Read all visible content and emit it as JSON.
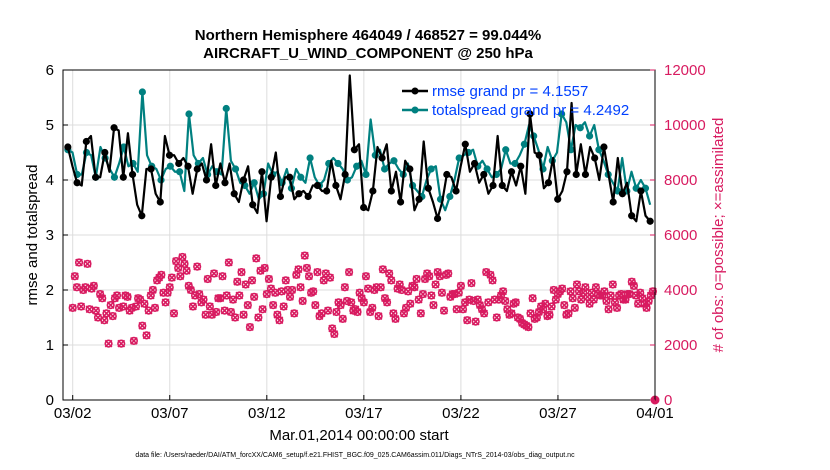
{
  "chart_data": {
    "type": "line",
    "title_line1": "Northern Hemisphere 464049 / 468527 = 99.044%",
    "title_line2": "AIRCRAFT_U_WIND_COMPONENT @ 250 hPa",
    "xlabel": "Mar.01,2014 00:00:00 start",
    "ylabel_left": "rmse and totalspread",
    "ylabel_right": "# of obs: o=possible; ×=assimilated",
    "footnote": "data file: /Users/raeder/DAI/ATM_forcXX/CAM6_setup/f.e21.FHIST_BGC.f09_025.CAM6assim.011/Diags_NTrS_2014-03/obs_diag_output.nc",
    "xlim": [
      1.5,
      32.0
    ],
    "ylim_left": [
      0,
      6
    ],
    "ylim_right": [
      0,
      12000
    ],
    "xticks": [
      2,
      7,
      12,
      17,
      22,
      27,
      32
    ],
    "xtick_labels": [
      "03/02",
      "03/07",
      "03/12",
      "03/17",
      "03/22",
      "03/27",
      "04/01"
    ],
    "yticks_left": [
      "0",
      "1",
      "2",
      "3",
      "4",
      "5",
      "6"
    ],
    "yticks_right": [
      "0",
      "2000",
      "4000",
      "6000",
      "8000",
      "10000",
      "12000"
    ],
    "colors": {
      "rmse": "#000000",
      "spread": "#008080",
      "obs": "#d81b60",
      "legend_text": "#0040ff",
      "grid": "#dddddd"
    },
    "series": [
      {
        "name": "rmse grand pr = 4.1557",
        "axis": "left",
        "values": [
          4.6,
          4.25,
          3.95,
          3.9,
          4.7,
          4.8,
          4.05,
          4.05,
          4.5,
          4.15,
          4.95,
          4.9,
          4.05,
          4.85,
          4.1,
          3.55,
          3.35,
          4.2,
          4.2,
          3.75,
          3.6,
          4.8,
          4.45,
          4.45,
          4.3,
          4.4,
          4.25,
          3.75,
          4.2,
          4.3,
          4.0,
          4.65,
          3.9,
          4.3,
          3.95,
          4.3,
          3.75,
          3.6,
          4.0,
          4.25,
          3.55,
          3.4,
          4.15,
          3.25,
          4.05,
          4.5,
          3.7,
          4.05,
          4.05,
          3.65,
          3.75,
          3.8,
          3.7,
          3.9,
          3.9,
          3.8,
          3.8,
          4.35,
          3.9,
          3.65,
          4.1,
          5.9,
          4.55,
          4.65,
          3.5,
          3.45,
          3.8,
          4.6,
          4.4,
          4.65,
          3.8,
          4.15,
          3.6,
          4.35,
          4.2,
          3.45,
          3.65,
          4.7,
          3.85,
          3.6,
          3.3,
          3.6,
          4.1,
          4.05,
          3.8,
          4.25,
          4.65,
          4.15,
          4.3,
          3.95,
          4.1,
          3.75,
          3.9,
          4.8,
          3.9,
          3.8,
          4.15,
          3.9,
          4.25,
          3.75,
          5.2,
          4.5,
          4.45,
          3.85,
          3.95,
          4.4,
          3.65,
          3.8,
          4.15,
          5.4,
          4.1,
          4.65,
          4.1,
          4.6,
          4.4,
          4.0,
          4.6,
          4.1,
          3.6,
          4.4,
          3.75,
          3.95,
          3.35,
          3.25,
          3.8,
          3.35,
          3.25
        ],
        "marker_every": 2
      },
      {
        "name": "totalspread grand pr = 4.2492",
        "axis": "left",
        "values": [
          4.55,
          4.5,
          4.1,
          4.1,
          4.5,
          4.45,
          4.05,
          4.6,
          4.4,
          4.2,
          4.05,
          4.3,
          4.6,
          4.25,
          4.3,
          4.15,
          5.6,
          4.45,
          4.25,
          4.2,
          4.0,
          4.2,
          4.25,
          4.15,
          4.15,
          3.8,
          5.2,
          4.45,
          4.3,
          4.4,
          4.1,
          4.25,
          4.15,
          4.1,
          5.3,
          4.35,
          4.2,
          3.95,
          3.9,
          3.75,
          3.95,
          3.65,
          3.75,
          4.3,
          4.1,
          4.15,
          3.95,
          4.2,
          3.85,
          4.2,
          4.05,
          3.95,
          4.4,
          4.05,
          3.9,
          4.0,
          4.3,
          4.4,
          4.3,
          4.2,
          4.0,
          4.05,
          4.25,
          4.35,
          4.1,
          5.1,
          4.45,
          4.55,
          4.2,
          4.3,
          4.35,
          4.2,
          4.1,
          4.3,
          3.9,
          3.8,
          3.7,
          4.0,
          4.2,
          4.25,
          3.65,
          3.45,
          3.7,
          4.0,
          4.4,
          4.45,
          4.5,
          4.55,
          4.25,
          4.35,
          4.2,
          4.05,
          4.1,
          4.2,
          4.55,
          4.3,
          4.3,
          4.45,
          4.65,
          5.0,
          4.8,
          4.55,
          4.2,
          4.6,
          4.35,
          4.5,
          5.2,
          5.05,
          4.55,
          5.0,
          4.95,
          5.05,
          4.8,
          5.0,
          4.55,
          4.35,
          4.1,
          3.95,
          3.8,
          4.4,
          3.8,
          4.15,
          3.85,
          4.0,
          3.85,
          3.55
        ],
        "marker_every": 2
      },
      {
        "name": "obs possible",
        "axis": "right",
        "values": [
          3350,
          4500,
          4100,
          5000,
          3400,
          4000,
          4100,
          4950,
          3300,
          4050,
          4150,
          3250,
          3000,
          3850,
          3700,
          2900,
          3150,
          2050,
          3450,
          3050,
          3700,
          3800,
          3350,
          2050,
          3400,
          3800,
          3750,
          3250,
          3350,
          2150,
          3400,
          3700,
          3650,
          2700,
          3500,
          2350,
          3250,
          3800,
          4000,
          3350,
          4350,
          4450,
          4550,
          3900,
          3550,
          3900,
          4100,
          4450,
          3150,
          5050,
          4800,
          4500,
          5200,
          4950,
          4700,
          4150,
          4000,
          3400,
          3800,
          4850,
          3850,
          3550,
          3650,
          3100,
          4400,
          3400,
          3100,
          4600,
          3200,
          3700,
          3700,
          4500,
          3250,
          3800,
          5000,
          3200,
          3650,
          3000,
          4300,
          3800,
          4650,
          3100,
          4200,
          3450,
          2650,
          4350,
          3750,
          5150,
          3000,
          4700,
          3300,
          4800,
          3850,
          4400,
          4050,
          3450,
          3900,
          3100,
          2900,
          3950,
          3400,
          4350,
          4000,
          3750,
          4000,
          3150,
          4550,
          4750,
          4100,
          3600,
          5250,
          4800,
          4500,
          3900,
          3950,
          3450,
          4650,
          3050,
          3150,
          4350,
          4600,
          3250,
          4450,
          2600,
          2400,
          3200,
          3550,
          3450,
          2950,
          4100,
          3600,
          4650,
          3550,
          3250,
          3300,
          3200,
          3900,
          3700,
          3550,
          4500,
          4050,
          3200,
          3350,
          4000,
          4100,
          3050,
          4100,
          4750,
          3700,
          3550,
          4600,
          4350,
          3150,
          2950,
          4050,
          4200,
          4000,
          3150,
          3350,
          3950,
          3500,
          4150,
          4100,
          4400,
          3650,
          3150,
          3850,
          4400,
          4600,
          4500,
          3800,
          3450,
          4200,
          4650,
          4500,
          3900,
          3250,
          4550,
          4600,
          3750,
          3850,
          3850,
          3300,
          3900,
          4150,
          3300,
          3550,
          2900,
          3650,
          4250,
          3600,
          2850,
          3650,
          3450,
          3300,
          3150,
          4650,
          3550,
          4550,
          4350,
          3650,
          3000,
          3650,
          3800,
          3950,
          3600,
          3300,
          3100,
          3150,
          3500,
          3550,
          3000,
          2950,
          2800,
          2750,
          2700,
          2650,
          3150,
          3700,
          2950,
          3000,
          3200,
          3400,
          3300,
          3500,
          3050,
          3100,
          3400,
          4000,
          3650,
          3850,
          3950,
          4050,
          3450,
          3100,
          3150,
          3950,
          3700,
          3350,
          4200,
          3950,
          3650,
          3900,
          4100,
          3750,
          3500,
          3900,
          3650,
          4100,
          3850,
          3800,
          3800,
          3950,
          3600,
          3300,
          3800,
          4200,
          3550,
          3350,
          3800,
          3850,
          3650,
          3650,
          3850,
          3850,
          4300,
          4150,
          3800,
          3500,
          3900,
          3700,
          3500,
          3350,
          3600,
          3800,
          3950
        ],
        "marker_every": 1
      },
      {
        "name": "obs assimilated",
        "axis": "right",
        "values": [
          3350,
          4500,
          4100,
          5000,
          3400,
          4000,
          4100,
          4950,
          3300,
          4050,
          4150,
          3250,
          3000,
          3850,
          3700,
          2900,
          3150,
          2050,
          3450,
          3050,
          3700,
          3800,
          3350,
          2050,
          3400,
          3800,
          3750,
          3250,
          3350,
          2150,
          3400,
          3700,
          3650,
          2700,
          3500,
          2350,
          3250,
          3800,
          4000,
          3350,
          4350,
          4450,
          4550,
          3900,
          3550,
          3900,
          4100,
          4450,
          3150,
          5050,
          4800,
          4500,
          5200,
          4950,
          4700,
          4150,
          4000,
          3400,
          3800,
          4850,
          3850,
          3550,
          3650,
          3100,
          4400,
          3400,
          3100,
          4600,
          3200,
          3700,
          3700,
          4500,
          3250,
          3800,
          5000,
          3200,
          3650,
          3000,
          4300,
          3800,
          4650,
          3100,
          4200,
          3450,
          2650,
          4350,
          3750,
          5150,
          3000,
          4700,
          3300,
          4800,
          3850,
          4400,
          4050,
          3450,
          3900,
          3100,
          2900,
          3950,
          3400,
          4350,
          4000,
          3750,
          4000,
          3150,
          4550,
          4750,
          4100,
          3600,
          5250,
          4800,
          4500,
          3900,
          3950,
          3450,
          4650,
          3050,
          3150,
          4350,
          4600,
          3250,
          4450,
          2600,
          2400,
          3200,
          3550,
          3450,
          2950,
          4100,
          3600,
          4650,
          3550,
          3250,
          3300,
          3200,
          3900,
          3700,
          3550,
          4500,
          4050,
          3200,
          3350,
          4000,
          4100,
          3050,
          4100,
          4750,
          3700,
          3550,
          4600,
          4350,
          3150,
          2950,
          4050,
          4200,
          4000,
          3150,
          3350,
          3950,
          3500,
          4150,
          4100,
          4400,
          3650,
          3150,
          3850,
          4400,
          4600,
          4500,
          3800,
          3450,
          4200,
          4650,
          4500,
          3900,
          3250,
          4550,
          4600,
          3750,
          3850,
          3850,
          3300,
          3900,
          4150,
          3300,
          3550,
          2900,
          3650,
          4250,
          3600,
          2850,
          3650,
          3450,
          3300,
          3150,
          4650,
          3550,
          4550,
          4350,
          3650,
          3000,
          3650,
          3800,
          3950,
          3600,
          3300,
          3100,
          3150,
          3500,
          3550,
          3000,
          2950,
          2800,
          2750,
          2700,
          2650,
          3150,
          3700,
          2950,
          3000,
          3200,
          3400,
          3300,
          3500,
          3050,
          3100,
          3400,
          4000,
          3650,
          3850,
          3950,
          4050,
          3450,
          3100,
          3150,
          3950,
          3700,
          3350,
          4200,
          3950,
          3650,
          3900,
          4100,
          3750,
          3500,
          3900,
          3650,
          4100,
          3850,
          3800,
          3800,
          3950,
          3600,
          3300,
          3800,
          4200,
          3550,
          3350,
          3800,
          3850,
          3650,
          3650,
          3850,
          3850,
          4300,
          4150,
          3800,
          3500,
          3900,
          3700,
          3500,
          3350,
          3600,
          3800,
          3950
        ],
        "marker_every": 1
      }
    ],
    "final_obs_point": {
      "x": 32.0,
      "value": 0
    }
  }
}
